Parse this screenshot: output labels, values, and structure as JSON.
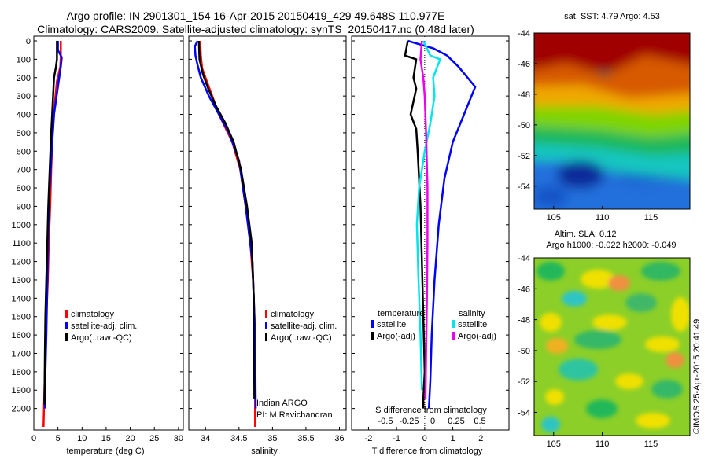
{
  "header": {
    "title_line1": "Argo profile: IN 2901301_154 16-Apr-2015 20150419_429 49.648S 110.977E",
    "title_line2": "Climatology: CARS2009. Satellite-adjusted climatology: synTS_20150417.nc (0.48d later)"
  },
  "colors": {
    "climatology": "#ff0000",
    "satellite": "#0000ff",
    "argo": "#000000",
    "sat_salinity": "#00e5ee",
    "argo_salinity": "#ee00ee"
  },
  "chart_data": [
    {
      "type": "line",
      "id": "temperature",
      "xlabel": "temperature (deg C)",
      "ylabel": "",
      "xlim": [
        0,
        31
      ],
      "ylim": [
        2100,
        0
      ],
      "xticks": [
        "0",
        "5",
        "10",
        "15",
        "20",
        "25",
        "30"
      ],
      "yticks": [
        "0",
        "100",
        "200",
        "300",
        "400",
        "500",
        "600",
        "700",
        "800",
        "900",
        "1000",
        "1100",
        "1200",
        "1300",
        "1400",
        "1500",
        "1600",
        "1700",
        "1800",
        "1900",
        "2000"
      ],
      "legend": [
        "climatology",
        "satellite-adj. clim.",
        "Argo(..raw -QC)"
      ],
      "series": [
        {
          "name": "climatology",
          "color": "#ff0000",
          "x": [
            5.6,
            5.6,
            5.5,
            4.8,
            4.3,
            3.9,
            3.6,
            3.4,
            3.1,
            2.9,
            2.6,
            2.4,
            2.2,
            2.0
          ],
          "y": [
            0,
            80,
            140,
            220,
            350,
            500,
            700,
            900,
            1100,
            1300,
            1500,
            1700,
            1900,
            2100
          ]
        },
        {
          "name": "satellite-adj. clim.",
          "color": "#0000ff",
          "x": [
            5.0,
            5.0,
            5.8,
            5.6,
            5.0,
            4.2,
            3.7,
            3.3,
            3.0,
            2.8,
            2.6,
            2.4,
            2.3
          ],
          "y": [
            0,
            50,
            90,
            140,
            250,
            400,
            600,
            800,
            1000,
            1300,
            1600,
            1800,
            2000
          ]
        },
        {
          "name": "Argo(..raw -QC)",
          "color": "#000000",
          "x": [
            4.8,
            4.8,
            4.6,
            4.2,
            4.0,
            3.6,
            3.3,
            3.0,
            2.8,
            2.6,
            2.4,
            2.3,
            2.2
          ],
          "y": [
            0,
            100,
            140,
            200,
            300,
            500,
            700,
            900,
            1100,
            1300,
            1500,
            1700,
            1980
          ]
        }
      ]
    },
    {
      "type": "line",
      "id": "salinity",
      "xlabel": "salinity",
      "xlim": [
        33.75,
        36.1
      ],
      "ylim": [
        2100,
        0
      ],
      "xticks": [
        "34",
        "34.5",
        "35",
        "35.5",
        "36"
      ],
      "legend": [
        "climatology",
        "satellite-adj. clim.",
        "Argo(..raw -QC)"
      ],
      "annotation": [
        "Indian ARGO",
        "PI: M Ravichandran"
      ],
      "series": [
        {
          "name": "climatology",
          "color": "#ff0000",
          "x": [
            33.92,
            33.93,
            33.95,
            34.05,
            34.2,
            34.4,
            34.52,
            34.6,
            34.67,
            34.71,
            34.73,
            34.74,
            34.74
          ],
          "y": [
            0,
            80,
            150,
            250,
            400,
            550,
            700,
            900,
            1100,
            1300,
            1500,
            1800,
            2100
          ]
        },
        {
          "name": "satellite-adj. clim.",
          "color": "#0000ff",
          "x": [
            33.88,
            33.84,
            33.85,
            33.88,
            33.93,
            34.05,
            34.2,
            34.35,
            34.5,
            34.6,
            34.7,
            34.74,
            34.75
          ],
          "y": [
            0,
            30,
            80,
            130,
            200,
            300,
            400,
            500,
            650,
            900,
            1200,
            1600,
            2000
          ]
        },
        {
          "name": "Argo(..raw -QC)",
          "color": "#000000",
          "x": [
            33.9,
            33.91,
            33.96,
            34.04,
            34.15,
            34.3,
            34.42,
            34.53,
            34.62,
            34.69,
            34.72,
            34.73
          ],
          "y": [
            0,
            100,
            180,
            260,
            350,
            450,
            550,
            700,
            900,
            1100,
            1400,
            1950
          ]
        }
      ]
    },
    {
      "type": "line",
      "id": "difference",
      "xlabel": "T difference from climatology",
      "xlabel_top": "S difference from climatology",
      "xlim": [
        -2.6,
        3.0
      ],
      "ylim": [
        2100,
        0
      ],
      "xticks": [
        "-2",
        "-1",
        "0",
        "1",
        "2"
      ],
      "xticks_top": [
        "-0.5",
        "-0.25",
        "0",
        "0.25",
        "0.5"
      ],
      "legend_temperature": {
        "title": "temperature",
        "items": [
          "satellite",
          "Argo(-adj)"
        ]
      },
      "legend_salinity": {
        "title": "salinity",
        "items": [
          "satellite",
          "Argo(-adj)"
        ]
      },
      "series": [
        {
          "name": "temperature satellite",
          "color": "#0000ff",
          "x": [
            -0.6,
            0.3,
            0.8,
            1.2,
            1.8,
            1.4,
            1.0,
            0.7,
            0.5,
            0.35,
            0.25,
            0.2,
            0.15
          ],
          "y": [
            0,
            40,
            80,
            140,
            250,
            400,
            550,
            750,
            1000,
            1300,
            1600,
            1850,
            2000
          ]
        },
        {
          "name": "temperature Argo(-adj)",
          "color": "#000000",
          "x": [
            -0.6,
            -0.7,
            -0.3,
            -0.4,
            -0.3,
            -0.5,
            -0.3,
            -0.25,
            -0.15,
            -0.1,
            -0.05,
            0.0,
            -0.05,
            -0.05
          ],
          "y": [
            0,
            80,
            100,
            200,
            260,
            400,
            480,
            600,
            900,
            1200,
            1500,
            1800,
            1950,
            2000
          ]
        },
        {
          "name": "salinity satellite",
          "color": "#00e5ee",
          "x": [
            -0.05,
            0.2,
            0.55,
            0.3,
            0.35,
            0.2,
            0.0,
            -0.2,
            -0.28,
            -0.22,
            -0.15,
            -0.1
          ],
          "y": [
            0,
            80,
            100,
            200,
            300,
            450,
            600,
            800,
            1000,
            1300,
            1600,
            1900
          ]
        },
        {
          "name": "salinity Argo(-adj)",
          "color": "#ee00ee",
          "x": [
            -0.1,
            -0.15,
            -0.05,
            0.0,
            0.05,
            0.1,
            0.1,
            0.08,
            0.05,
            0.03
          ],
          "y": [
            0,
            100,
            200,
            300,
            500,
            800,
            1100,
            1400,
            1700,
            1950
          ]
        }
      ]
    },
    {
      "type": "heatmap",
      "id": "sst",
      "title": "sat. SST: 4.79 Argo: 4.53",
      "xticks": [
        "105",
        "110",
        "115"
      ],
      "yticks": [
        "-44",
        "-46",
        "-48",
        "-50",
        "-52",
        "-54"
      ],
      "xlim": [
        103,
        119
      ],
      "ylim": [
        -55.5,
        -44
      ]
    },
    {
      "type": "heatmap",
      "id": "sla",
      "title_line1": "Altim. SLA: 0.12",
      "title_line2": "Argo h1000: -0.022 h2000: -0.049",
      "xticks": [
        "105",
        "110",
        "115"
      ],
      "yticks": [
        "-44",
        "-46",
        "-48",
        "-50",
        "-52",
        "-54"
      ],
      "xlim": [
        103,
        119
      ],
      "ylim": [
        -55.5,
        -44
      ]
    }
  ],
  "footer": {
    "watermark": "©IMOS 25-Apr-2015 20:41:49"
  }
}
